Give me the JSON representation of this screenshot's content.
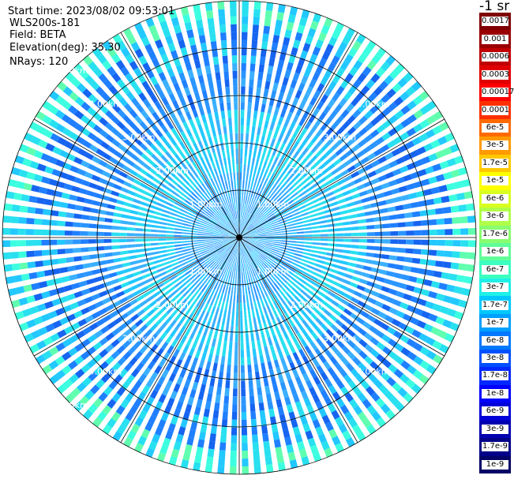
{
  "info": {
    "start_time": "Start time: 2023/08/02 09:53:01",
    "device": "WLS200s-181",
    "field": "Field: BETA",
    "elevation": "Elevation(deg): 35.30",
    "nrays": "NRays: 120"
  },
  "colorbar": {
    "unit_label": "-1 sr",
    "labels": [
      "0.0017",
      "0.001",
      "0.0006",
      "0.0003",
      "0.00017",
      "0.0001",
      "6e-5",
      "3e-5",
      "1.7e-5",
      "1e-5",
      "6e-6",
      "3e-6",
      "1.7e-6",
      "1e-6",
      "6e-7",
      "3e-7",
      "1.7e-7",
      "1e-7",
      "6e-8",
      "3e-8",
      "1.7e-8",
      "1e-8",
      "6e-9",
      "3e-9",
      "1.7e-9",
      "1e-9"
    ],
    "colors": [
      "#7f0000",
      "#9a0000",
      "#c00000",
      "#e00000",
      "#ff0000",
      "#ff3000",
      "#ff6a00",
      "#ff9a00",
      "#ffc800",
      "#ffff00",
      "#d8ff20",
      "#b0ff48",
      "#88ff70",
      "#60ff98",
      "#3cffc0",
      "#20f0e8",
      "#00c8ff",
      "#00a0ff",
      "#0078ff",
      "#0050ff",
      "#0028ff",
      "#0000ff",
      "#0000d8",
      "#0000b0",
      "#000088",
      "#000066"
    ]
  },
  "chart_data": {
    "type": "heatmap",
    "projection": "polar",
    "rays": 120,
    "range_rings_km": [
      1,
      2,
      3,
      4,
      5
    ],
    "ring_labels": [
      "1.00km",
      "2.00km",
      "3.00km",
      "4.00km",
      "5.00km"
    ],
    "max_range_km": 5.0,
    "radial_lines_deg": [
      0,
      30,
      60,
      90,
      120,
      150,
      180,
      210,
      240,
      270,
      300,
      330
    ],
    "color_scale": "log",
    "value_range": [
      1e-09,
      0.0017
    ]
  }
}
